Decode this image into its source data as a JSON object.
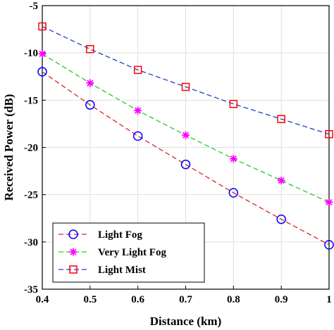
{
  "chart_data": {
    "type": "line",
    "title": "",
    "xlabel": "Distance (km)",
    "ylabel": "Received Power (dB)",
    "xlim": [
      0.4,
      1.0
    ],
    "ylim": [
      -35,
      -5
    ],
    "xticks": [
      0.4,
      0.5,
      0.6,
      0.7,
      0.8,
      0.9,
      1.0
    ],
    "xtick_labels": [
      "0.4",
      "0.5",
      "0.6",
      "0.7",
      "0.8",
      "0.9",
      "1"
    ],
    "yticks": [
      -35,
      -30,
      -25,
      -20,
      -15,
      -10,
      -5
    ],
    "ytick_labels": [
      "-35",
      "-30",
      "-25",
      "-20",
      "-15",
      "-10",
      "-5"
    ],
    "grid": true,
    "legend_position": "bottom-left",
    "x": [
      0.4,
      0.5,
      0.6,
      0.7,
      0.8,
      0.9,
      1.0
    ],
    "series": [
      {
        "name": "Light Fog",
        "values": [
          -12.0,
          -15.5,
          -18.8,
          -21.8,
          -24.8,
          -27.6,
          -30.3
        ],
        "color": "#d62728",
        "marker_color": "#0000ff",
        "marker": "circle",
        "line_style": "dashed"
      },
      {
        "name": "Very Light Fog",
        "values": [
          -10.1,
          -13.2,
          -16.1,
          -18.7,
          -21.2,
          -23.5,
          -25.8
        ],
        "color": "#22cc22",
        "marker_color": "#ff00ff",
        "marker": "asterisk",
        "line_style": "dashed"
      },
      {
        "name": "Light Mist",
        "values": [
          -7.2,
          -9.6,
          -11.8,
          -13.6,
          -15.4,
          -17.0,
          -18.6
        ],
        "color": "#1f3fbf",
        "marker_color": "#ff0000",
        "marker": "square",
        "line_style": "dashed"
      }
    ]
  }
}
